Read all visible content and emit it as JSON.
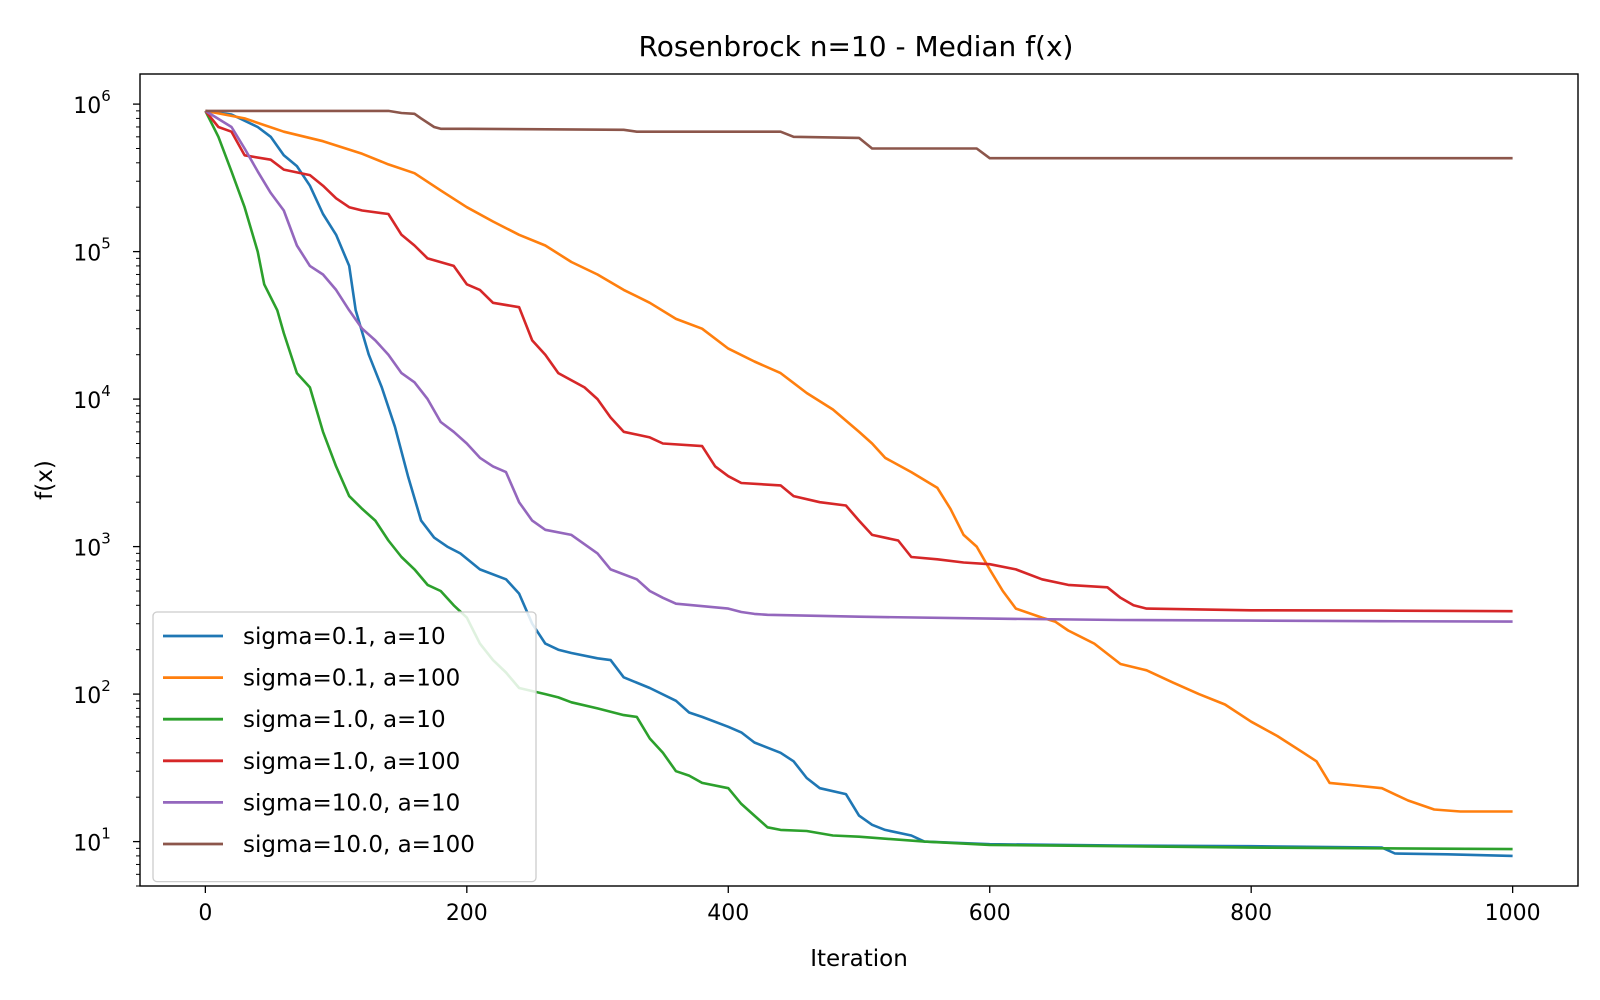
{
  "chart_data": {
    "type": "line",
    "title": "Rosenbrock n=10 - Median f(x)",
    "xlabel": "Iteration",
    "ylabel": "f(x)",
    "xlim": [
      -50,
      1050
    ],
    "ylim": [
      5,
      1600000
    ],
    "yscale": "log",
    "grid": false,
    "legend_position": "lower-left",
    "x_ticks": [
      0,
      200,
      400,
      600,
      800,
      1000
    ],
    "x_tick_labels": [
      "0",
      "200",
      "400",
      "600",
      "800",
      "1000"
    ],
    "y_ticks": [
      10,
      100,
      1000,
      10000,
      100000,
      1000000
    ],
    "y_tick_base": "10",
    "y_tick_exponents": [
      "1",
      "2",
      "3",
      "4",
      "5",
      "6"
    ],
    "series": [
      {
        "name": "sigma=0.1, a=10",
        "color": "#1f77b4",
        "points": [
          [
            0,
            900000
          ],
          [
            20,
            850000
          ],
          [
            40,
            700000
          ],
          [
            50,
            600000
          ],
          [
            60,
            450000
          ],
          [
            70,
            380000
          ],
          [
            80,
            280000
          ],
          [
            90,
            180000
          ],
          [
            100,
            130000
          ],
          [
            110,
            80000
          ],
          [
            115,
            40000
          ],
          [
            125,
            20000
          ],
          [
            135,
            12000
          ],
          [
            145,
            6500
          ],
          [
            155,
            3000
          ],
          [
            165,
            1500
          ],
          [
            175,
            1150
          ],
          [
            185,
            1000
          ],
          [
            195,
            900
          ],
          [
            210,
            700
          ],
          [
            230,
            600
          ],
          [
            240,
            480
          ],
          [
            250,
            300
          ],
          [
            260,
            220
          ],
          [
            270,
            200
          ],
          [
            280,
            190
          ],
          [
            300,
            175
          ],
          [
            310,
            170
          ],
          [
            320,
            130
          ],
          [
            340,
            110
          ],
          [
            360,
            90
          ],
          [
            370,
            75
          ],
          [
            380,
            70
          ],
          [
            400,
            60
          ],
          [
            410,
            55
          ],
          [
            420,
            47
          ],
          [
            440,
            40
          ],
          [
            450,
            35
          ],
          [
            460,
            27
          ],
          [
            470,
            23
          ],
          [
            490,
            21
          ],
          [
            500,
            15
          ],
          [
            510,
            13
          ],
          [
            520,
            12
          ],
          [
            540,
            11
          ],
          [
            550,
            10
          ],
          [
            600,
            9.6
          ],
          [
            700,
            9.4
          ],
          [
            800,
            9.3
          ],
          [
            900,
            9.1
          ],
          [
            910,
            8.3
          ],
          [
            950,
            8.2
          ],
          [
            1000,
            8.0
          ]
        ]
      },
      {
        "name": "sigma=0.1, a=100",
        "color": "#ff7f0e",
        "points": [
          [
            0,
            900000
          ],
          [
            30,
            800000
          ],
          [
            60,
            650000
          ],
          [
            90,
            560000
          ],
          [
            120,
            460000
          ],
          [
            140,
            390000
          ],
          [
            160,
            340000
          ],
          [
            180,
            260000
          ],
          [
            200,
            200000
          ],
          [
            220,
            160000
          ],
          [
            240,
            130000
          ],
          [
            260,
            110000
          ],
          [
            280,
            85000
          ],
          [
            300,
            70000
          ],
          [
            320,
            55000
          ],
          [
            340,
            45000
          ],
          [
            360,
            35000
          ],
          [
            380,
            30000
          ],
          [
            400,
            22000
          ],
          [
            420,
            18000
          ],
          [
            440,
            15000
          ],
          [
            460,
            11000
          ],
          [
            480,
            8500
          ],
          [
            500,
            6000
          ],
          [
            510,
            5000
          ],
          [
            520,
            4000
          ],
          [
            540,
            3200
          ],
          [
            560,
            2500
          ],
          [
            570,
            1800
          ],
          [
            580,
            1200
          ],
          [
            590,
            1000
          ],
          [
            600,
            700
          ],
          [
            610,
            500
          ],
          [
            620,
            380
          ],
          [
            640,
            330
          ],
          [
            650,
            310
          ],
          [
            660,
            270
          ],
          [
            680,
            220
          ],
          [
            700,
            160
          ],
          [
            720,
            145
          ],
          [
            740,
            120
          ],
          [
            760,
            100
          ],
          [
            780,
            85
          ],
          [
            800,
            65
          ],
          [
            820,
            52
          ],
          [
            840,
            40
          ],
          [
            850,
            35
          ],
          [
            860,
            25
          ],
          [
            880,
            24
          ],
          [
            900,
            23
          ],
          [
            920,
            19
          ],
          [
            940,
            16.5
          ],
          [
            960,
            16
          ],
          [
            1000,
            16
          ]
        ]
      },
      {
        "name": "sigma=1.0, a=10",
        "color": "#2ca02c",
        "points": [
          [
            0,
            900000
          ],
          [
            10,
            600000
          ],
          [
            20,
            350000
          ],
          [
            30,
            200000
          ],
          [
            40,
            100000
          ],
          [
            45,
            60000
          ],
          [
            55,
            40000
          ],
          [
            60,
            28000
          ],
          [
            70,
            15000
          ],
          [
            80,
            12000
          ],
          [
            90,
            6000
          ],
          [
            100,
            3500
          ],
          [
            110,
            2200
          ],
          [
            120,
            1800
          ],
          [
            130,
            1500
          ],
          [
            140,
            1100
          ],
          [
            150,
            850
          ],
          [
            160,
            700
          ],
          [
            170,
            550
          ],
          [
            180,
            500
          ],
          [
            190,
            400
          ],
          [
            200,
            330
          ],
          [
            210,
            220
          ],
          [
            220,
            170
          ],
          [
            230,
            140
          ],
          [
            240,
            110
          ],
          [
            260,
            100
          ],
          [
            270,
            95
          ],
          [
            280,
            88
          ],
          [
            300,
            80
          ],
          [
            320,
            72
          ],
          [
            330,
            70
          ],
          [
            340,
            50
          ],
          [
            350,
            40
          ],
          [
            360,
            30
          ],
          [
            370,
            28
          ],
          [
            380,
            25
          ],
          [
            400,
            23
          ],
          [
            410,
            18
          ],
          [
            420,
            15
          ],
          [
            430,
            12.5
          ],
          [
            440,
            12
          ],
          [
            460,
            11.8
          ],
          [
            480,
            11
          ],
          [
            500,
            10.8
          ],
          [
            550,
            10
          ],
          [
            600,
            9.5
          ],
          [
            700,
            9.3
          ],
          [
            800,
            9.1
          ],
          [
            900,
            9.0
          ],
          [
            1000,
            8.9
          ]
        ]
      },
      {
        "name": "sigma=1.0, a=100",
        "color": "#d62728",
        "points": [
          [
            0,
            900000
          ],
          [
            10,
            700000
          ],
          [
            20,
            650000
          ],
          [
            30,
            450000
          ],
          [
            50,
            420000
          ],
          [
            60,
            360000
          ],
          [
            80,
            330000
          ],
          [
            90,
            280000
          ],
          [
            100,
            230000
          ],
          [
            110,
            200000
          ],
          [
            120,
            190000
          ],
          [
            140,
            180000
          ],
          [
            150,
            130000
          ],
          [
            160,
            110000
          ],
          [
            170,
            90000
          ],
          [
            190,
            80000
          ],
          [
            200,
            60000
          ],
          [
            210,
            55000
          ],
          [
            220,
            45000
          ],
          [
            240,
            42000
          ],
          [
            250,
            25000
          ],
          [
            260,
            20000
          ],
          [
            270,
            15000
          ],
          [
            290,
            12000
          ],
          [
            300,
            10000
          ],
          [
            310,
            7500
          ],
          [
            320,
            6000
          ],
          [
            340,
            5500
          ],
          [
            350,
            5000
          ],
          [
            380,
            4800
          ],
          [
            390,
            3500
          ],
          [
            400,
            3000
          ],
          [
            410,
            2700
          ],
          [
            440,
            2600
          ],
          [
            450,
            2200
          ],
          [
            470,
            2000
          ],
          [
            490,
            1900
          ],
          [
            500,
            1500
          ],
          [
            510,
            1200
          ],
          [
            530,
            1100
          ],
          [
            540,
            850
          ],
          [
            560,
            820
          ],
          [
            580,
            780
          ],
          [
            600,
            760
          ],
          [
            620,
            700
          ],
          [
            640,
            600
          ],
          [
            660,
            550
          ],
          [
            690,
            530
          ],
          [
            700,
            450
          ],
          [
            710,
            400
          ],
          [
            720,
            380
          ],
          [
            800,
            370
          ],
          [
            900,
            368
          ],
          [
            1000,
            365
          ]
        ]
      },
      {
        "name": "sigma=10.0, a=10",
        "color": "#9467bd",
        "points": [
          [
            0,
            900000
          ],
          [
            20,
            700000
          ],
          [
            30,
            500000
          ],
          [
            40,
            350000
          ],
          [
            50,
            250000
          ],
          [
            60,
            190000
          ],
          [
            70,
            110000
          ],
          [
            80,
            80000
          ],
          [
            90,
            70000
          ],
          [
            100,
            55000
          ],
          [
            110,
            40000
          ],
          [
            120,
            30000
          ],
          [
            130,
            25000
          ],
          [
            140,
            20000
          ],
          [
            150,
            15000
          ],
          [
            160,
            13000
          ],
          [
            170,
            10000
          ],
          [
            180,
            7000
          ],
          [
            190,
            6000
          ],
          [
            200,
            5000
          ],
          [
            210,
            4000
          ],
          [
            220,
            3500
          ],
          [
            230,
            3200
          ],
          [
            240,
            2000
          ],
          [
            250,
            1500
          ],
          [
            260,
            1300
          ],
          [
            280,
            1200
          ],
          [
            300,
            900
          ],
          [
            310,
            700
          ],
          [
            330,
            600
          ],
          [
            340,
            500
          ],
          [
            350,
            450
          ],
          [
            360,
            410
          ],
          [
            400,
            380
          ],
          [
            410,
            360
          ],
          [
            420,
            350
          ],
          [
            430,
            345
          ],
          [
            500,
            335
          ],
          [
            600,
            325
          ],
          [
            700,
            318
          ],
          [
            800,
            315
          ],
          [
            900,
            312
          ],
          [
            1000,
            310
          ]
        ]
      },
      {
        "name": "sigma=10.0, a=100",
        "color": "#8c564b",
        "points": [
          [
            0,
            900000
          ],
          [
            140,
            900000
          ],
          [
            150,
            870000
          ],
          [
            160,
            860000
          ],
          [
            165,
            800000
          ],
          [
            175,
            700000
          ],
          [
            180,
            680000
          ],
          [
            200,
            680000
          ],
          [
            320,
            670000
          ],
          [
            330,
            650000
          ],
          [
            440,
            650000
          ],
          [
            450,
            600000
          ],
          [
            500,
            590000
          ],
          [
            510,
            500000
          ],
          [
            590,
            500000
          ],
          [
            600,
            430000
          ],
          [
            700,
            430000
          ],
          [
            800,
            430000
          ],
          [
            900,
            430000
          ],
          [
            1000,
            430000
          ]
        ]
      }
    ]
  }
}
